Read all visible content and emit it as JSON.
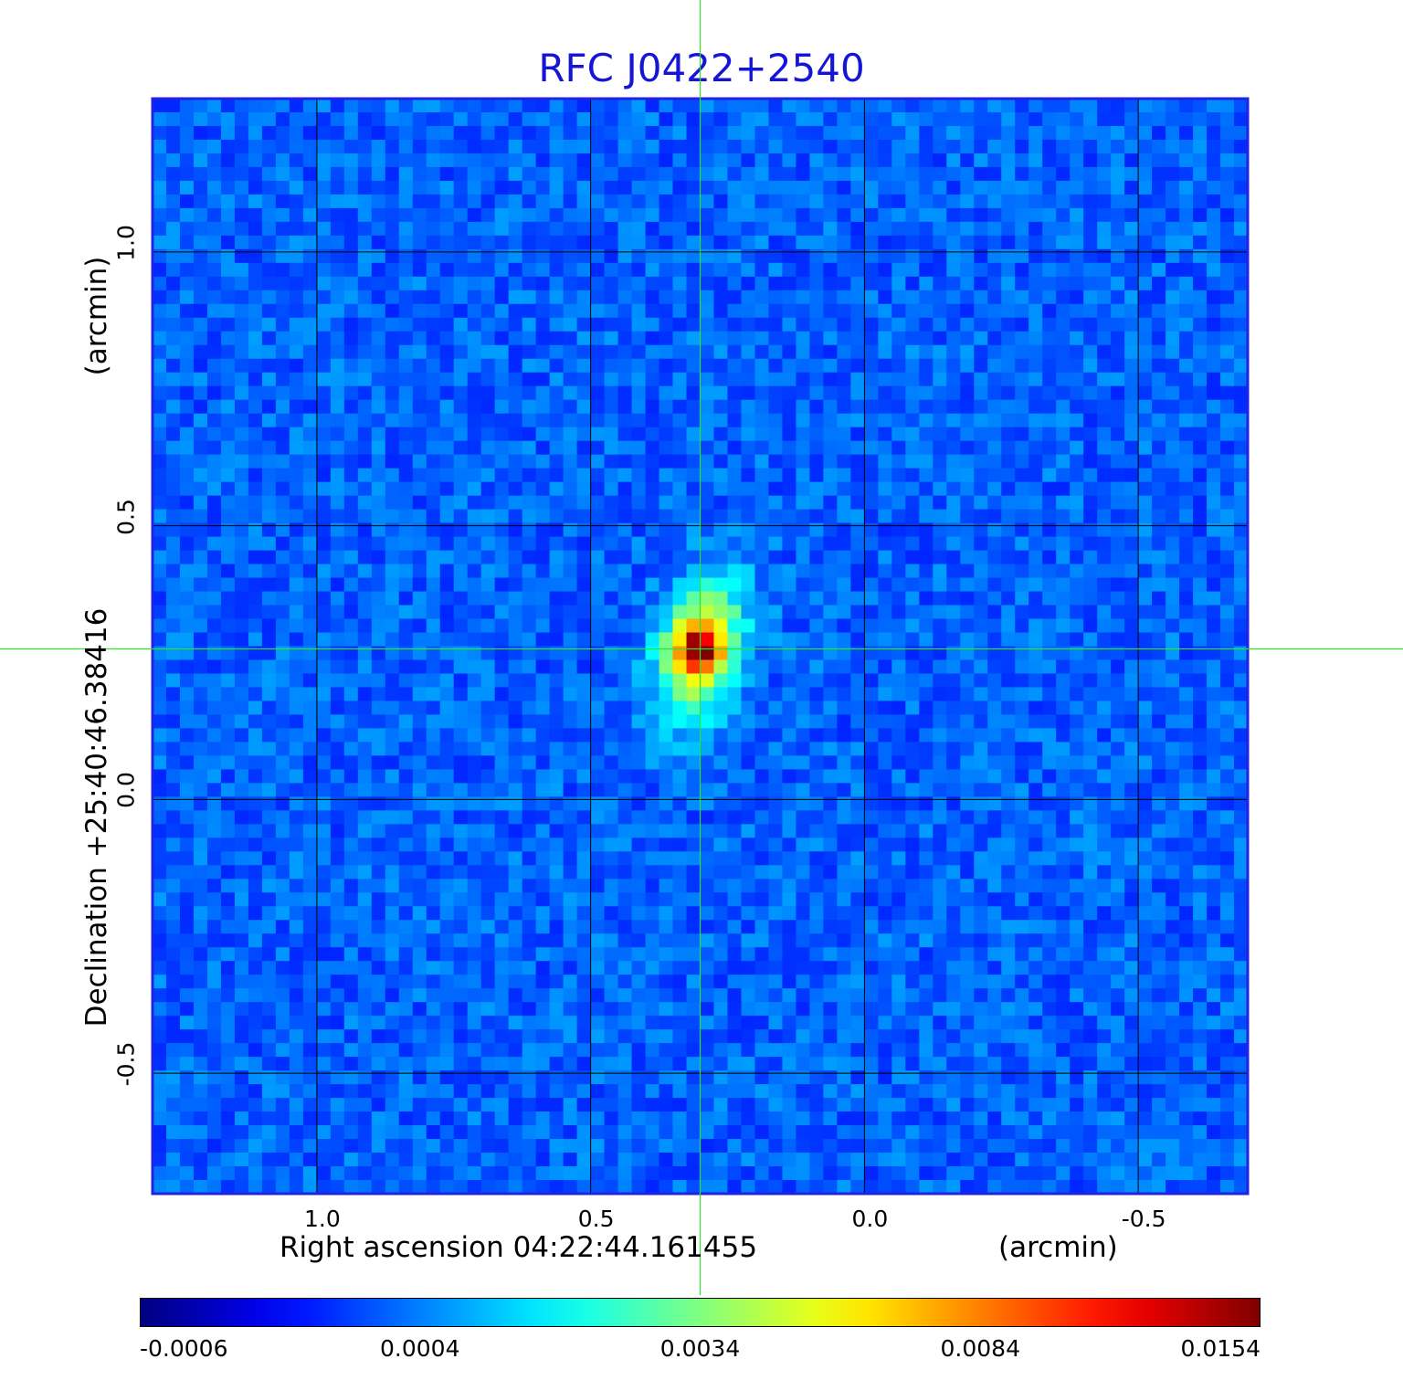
{
  "chart_data": {
    "type": "heatmap",
    "title": "RFC J0422+2540",
    "xlabel": "Right ascension  04:22:44.161455",
    "xunit": "(arcmin)",
    "ylabel": "Declination  +25:40:46.38416",
    "yunit": "(arcmin)",
    "x_ticks": [
      "1.0",
      "0.5",
      "0.0",
      "-0.5"
    ],
    "x_tick_values": [
      1.0,
      0.5,
      0.0,
      -0.5
    ],
    "y_ticks": [
      "1.0",
      "0.5",
      "0.0",
      "-0.5"
    ],
    "y_tick_values": [
      1.0,
      0.5,
      0.0,
      -0.5
    ],
    "xlim": [
      1.3,
      -0.7
    ],
    "ylim": [
      -0.72,
      1.28
    ],
    "grid": true,
    "crosshair": {
      "x": 0.3,
      "y": 0.275
    },
    "source": {
      "x": 0.3,
      "y": 0.275,
      "peak": 0.0154
    },
    "colorbar": {
      "ticks": [
        "-0.0006",
        "0.0004",
        "0.0034",
        "0.0084",
        "0.0154"
      ],
      "values": [
        -0.0006,
        0.0004,
        0.0034,
        0.0084,
        0.0154
      ],
      "colormap": "jet"
    },
    "colors": {
      "frame": "#2222e0",
      "grid": "#000000",
      "crosshair": "#32e032",
      "title": "#1515d8"
    }
  }
}
